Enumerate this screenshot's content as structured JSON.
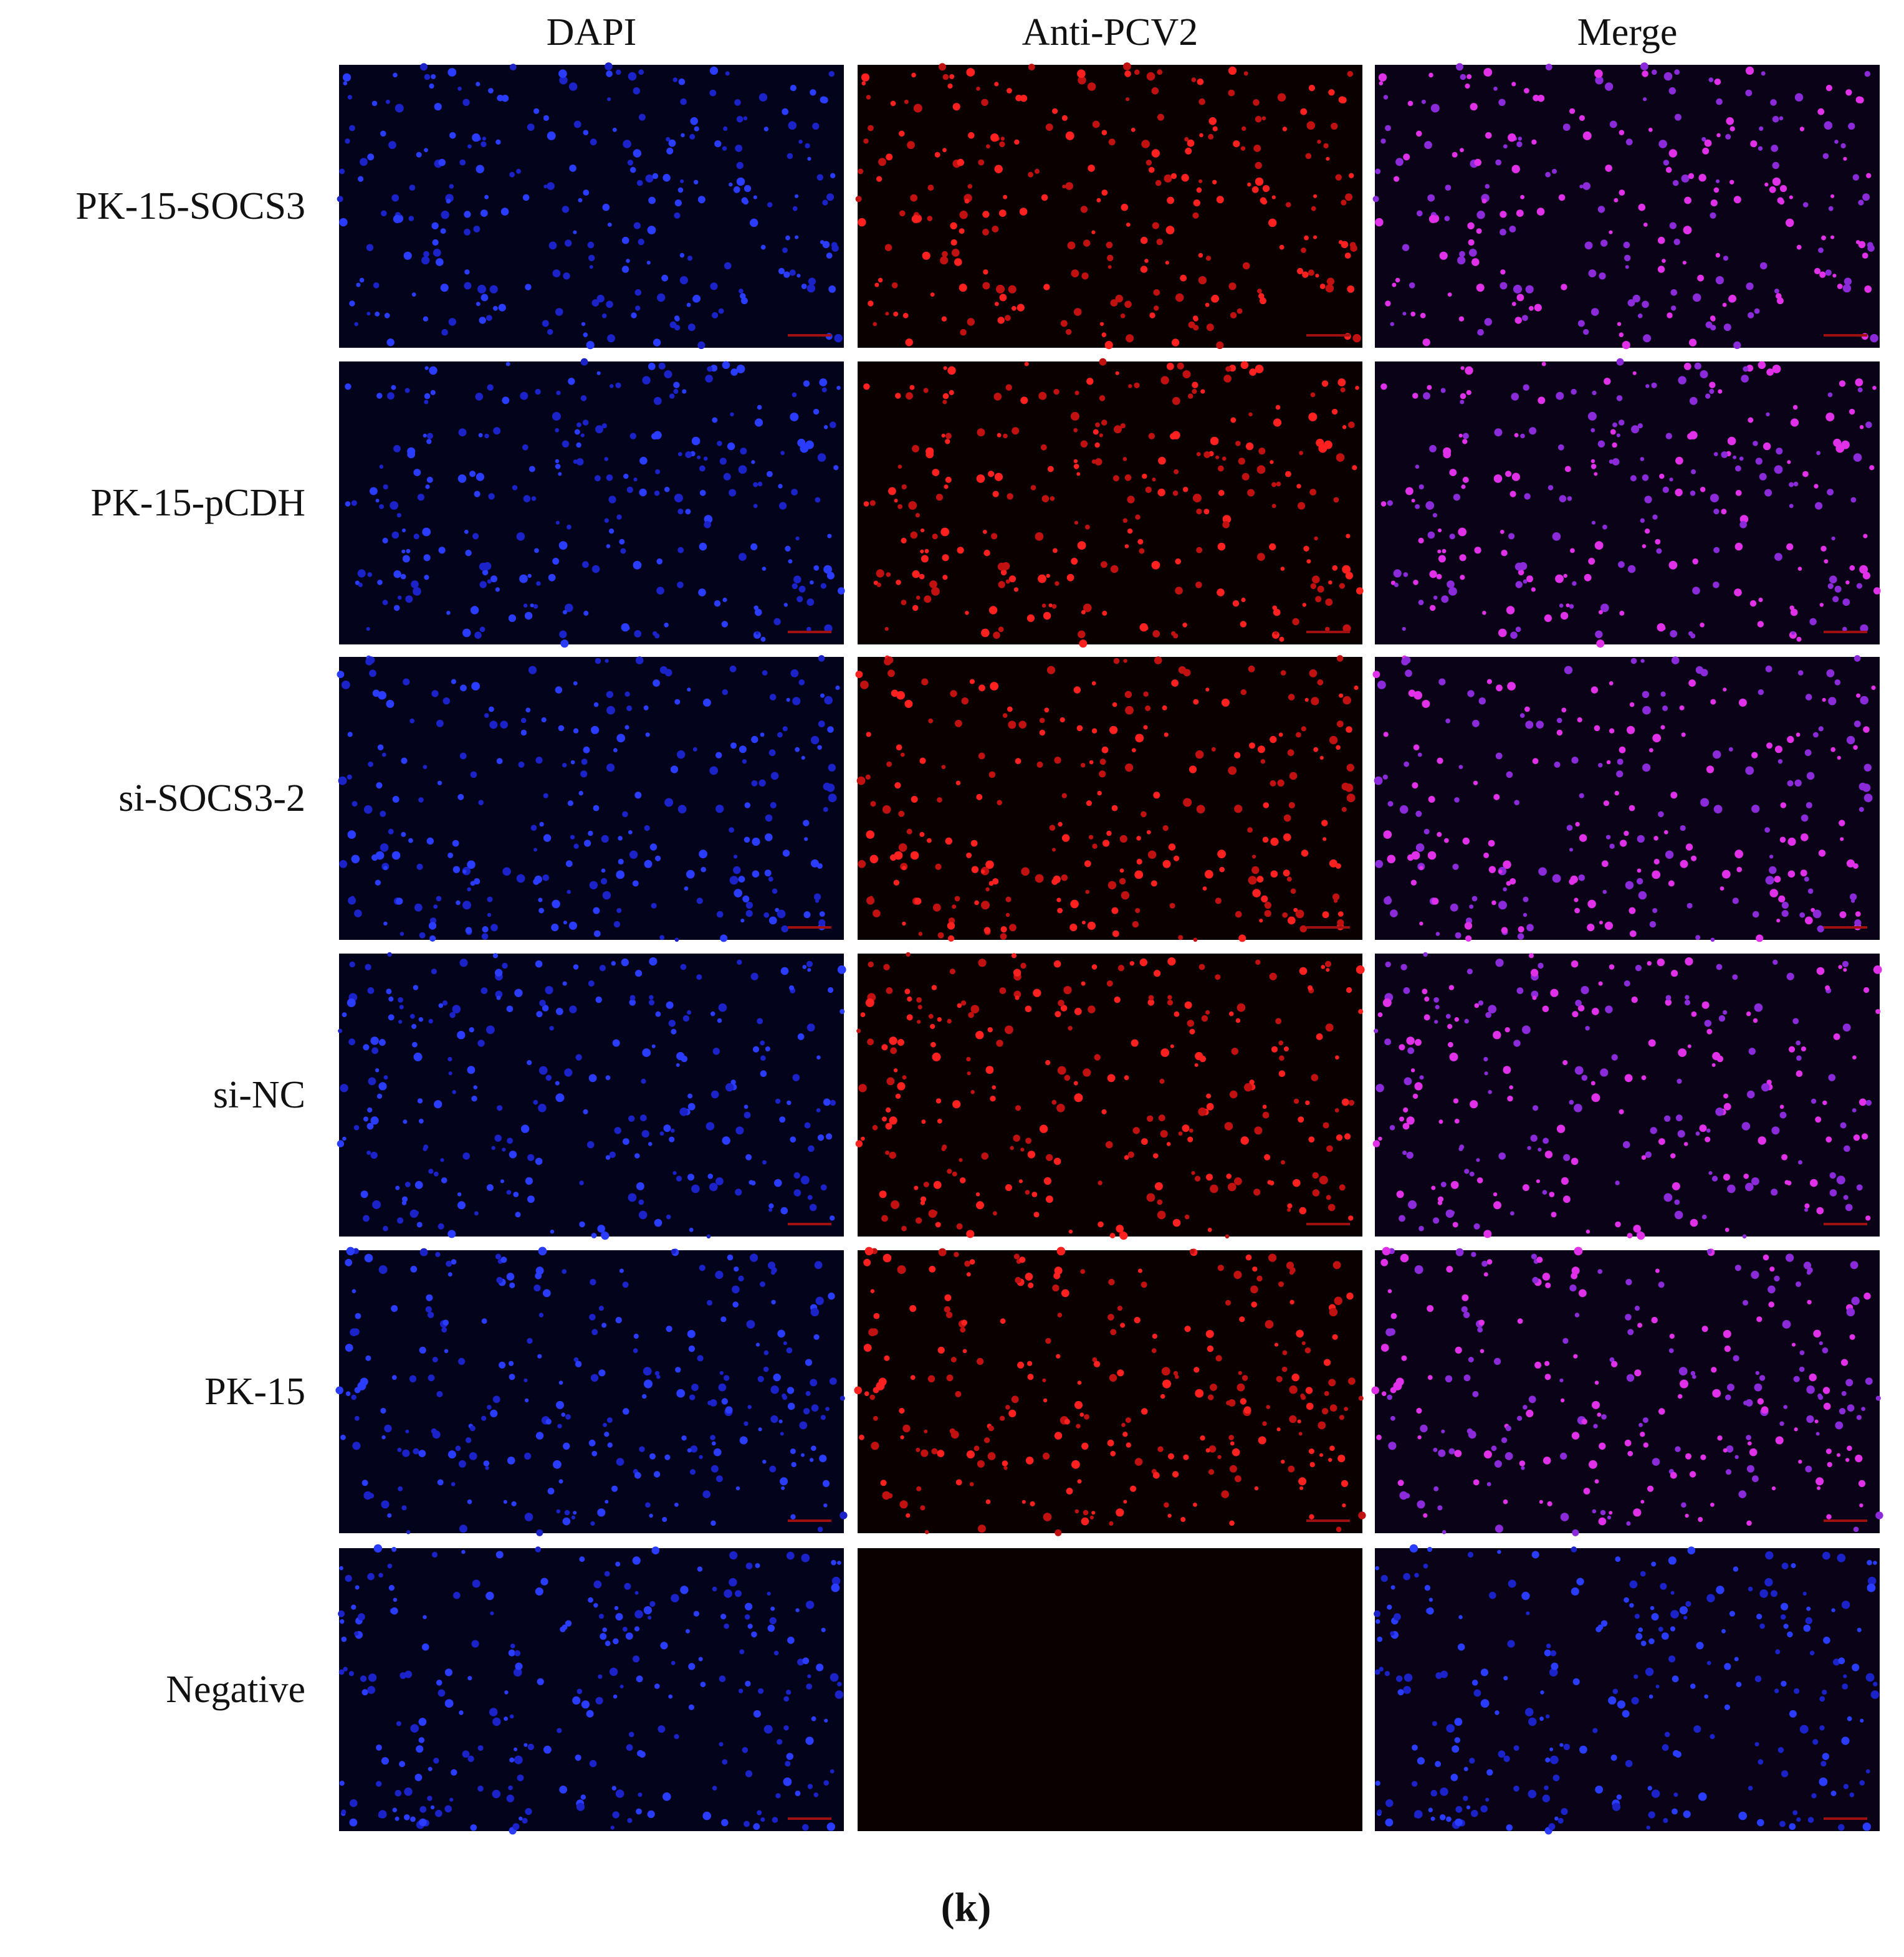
{
  "column_headers": [
    "DAPI",
    "Anti-PCV2",
    "Merge"
  ],
  "row_labels": [
    "PK-15-SOCS3",
    "PK-15-pCDH",
    "si-SOCS3-2",
    "si-NC",
    "PK-15",
    "Negative"
  ],
  "caption": "(k)"
}
